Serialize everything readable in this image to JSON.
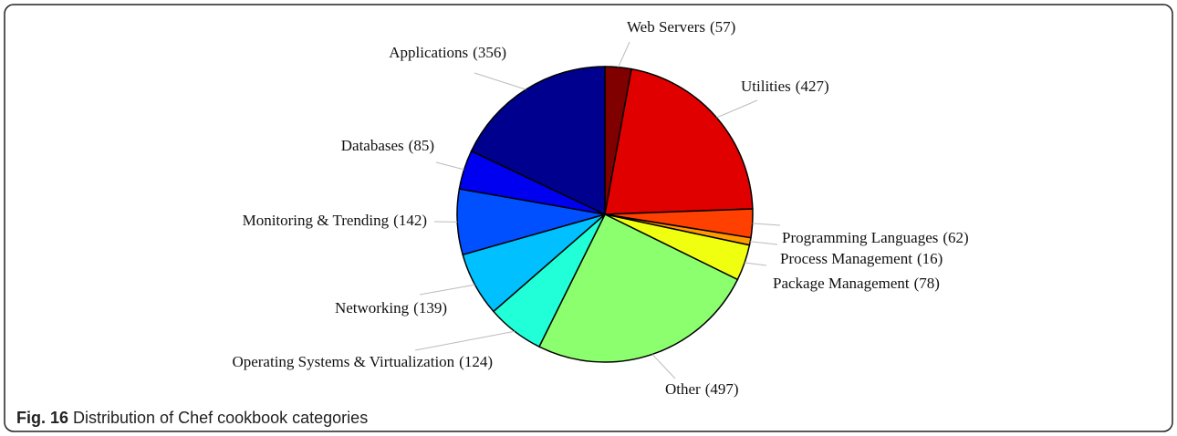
{
  "chart_data": {
    "type": "pie",
    "categories": [
      "Web Servers",
      "Utilities",
      "Programming Languages",
      "Process Management",
      "Package Management",
      "Other",
      "Operating Systems & Virtualization",
      "Networking",
      "Monitoring & Trending",
      "Databases",
      "Applications"
    ],
    "values": [
      57,
      427,
      62,
      16,
      78,
      497,
      124,
      139,
      142,
      85,
      356
    ],
    "value_labels": [
      "(57)",
      "(427)",
      "(62)",
      "(16)",
      "(78)",
      "(497)",
      "(124)",
      "(139)",
      "(142)",
      "(85)",
      "(356)"
    ],
    "colors": [
      "#800000",
      "#e00000",
      "#ff4000",
      "#ff9a00",
      "#f0ff10",
      "#8cff6e",
      "#20ffd8",
      "#00c0ff",
      "#0050ff",
      "#0000f0",
      "#00008f"
    ]
  },
  "caption_label": "Fig. 16",
  "caption": "Distribution of Chef cookbook categories"
}
